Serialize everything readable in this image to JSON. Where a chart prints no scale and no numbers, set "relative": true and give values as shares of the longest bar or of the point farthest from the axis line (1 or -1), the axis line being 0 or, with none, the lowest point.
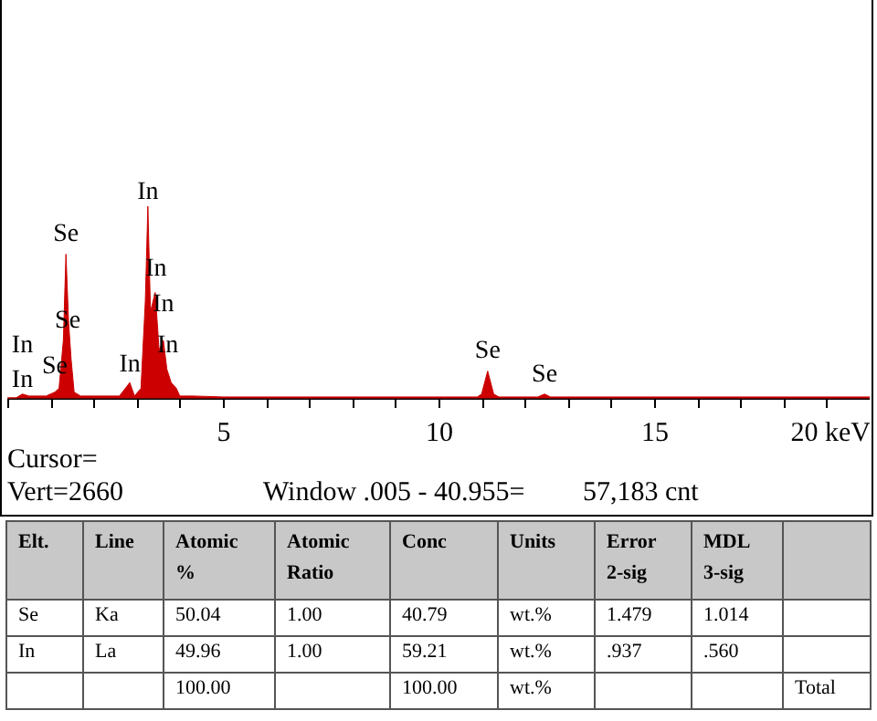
{
  "chart_data": [
    {
      "type": "area",
      "relative": true,
      "color": "#cc0000",
      "grid": false,
      "x": [
        0,
        0.2,
        0.35,
        0.5,
        0.9,
        1.1,
        1.2,
        1.3,
        1.36,
        1.42,
        1.48,
        1.55,
        1.7,
        2.6,
        2.84,
        2.95,
        3.1,
        3.2,
        3.26,
        3.32,
        3.43,
        3.52,
        3.62,
        3.7,
        3.8,
        3.92,
        4.0,
        4.3,
        5,
        10.9,
        11.0,
        11.14,
        11.28,
        11.4,
        12.3,
        12.46,
        12.6,
        20
      ],
      "values": [
        0,
        0,
        0.02,
        0.01,
        0.01,
        0.03,
        0.05,
        0.3,
        0.75,
        0.4,
        0.2,
        0.03,
        0.01,
        0.01,
        0.08,
        0.01,
        0.05,
        0.5,
        1.0,
        0.45,
        0.55,
        0.25,
        0.3,
        0.15,
        0.08,
        0.05,
        0.01,
        0.01,
        0.005,
        0.005,
        0.02,
        0.14,
        0.02,
        0.005,
        0.005,
        0.02,
        0.005,
        0.005
      ],
      "xlim": [
        0,
        20
      ],
      "xticks": [
        {
          "value": 0,
          "label": null
        },
        {
          "value": 1,
          "label": null
        },
        {
          "value": 2,
          "label": null
        },
        {
          "value": 3,
          "label": null
        },
        {
          "value": 4,
          "label": null
        },
        5,
        {
          "value": 6,
          "label": null
        },
        {
          "value": 7,
          "label": null
        },
        {
          "value": 8,
          "label": null
        },
        {
          "value": 9,
          "label": null
        },
        10,
        {
          "value": 11,
          "label": null
        },
        {
          "value": 12,
          "label": null
        },
        {
          "value": 13,
          "label": null
        },
        {
          "value": 14,
          "label": null
        },
        15,
        {
          "value": 16,
          "label": null
        },
        {
          "value": 17,
          "label": null
        },
        {
          "value": 18,
          "label": null
        },
        {
          "value": 19,
          "label": null
        },
        {
          "value": 20,
          "label": "20 keV"
        }
      ],
      "annotations": [
        {
          "text": "In",
          "x": 0.35,
          "y": 0.02
        },
        {
          "text": "In",
          "x": 0.35,
          "y": 0.02
        },
        {
          "text": "Se",
          "x": 1.1,
          "y": 0.09
        },
        {
          "text": "Se",
          "x": 1.4,
          "y": 0.33
        },
        {
          "text": "Se",
          "x": 1.36,
          "y": 0.78
        },
        {
          "text": "In",
          "x": 2.84,
          "y": 0.1
        },
        {
          "text": "In",
          "x": 3.26,
          "y": 1.0
        },
        {
          "text": "In",
          "x": 3.45,
          "y": 0.6
        },
        {
          "text": "In",
          "x": 3.62,
          "y": 0.3
        },
        {
          "text": "In",
          "x": 3.72,
          "y": 0.2
        },
        {
          "text": "Se",
          "x": 11.14,
          "y": 0.17
        },
        {
          "text": "Se",
          "x": 12.46,
          "y": 0.05
        },
        "Cursor=",
        "Vert=2660",
        "Window .005 - 40.955=",
        "57,183 cnt"
      ]
    },
    {
      "type": "other",
      "categories": [
        "Elt.",
        "Line",
        "Atomic\n%",
        "Atomic\nRatio",
        "Conc",
        "Units",
        "Error\n2-sig",
        "MDL\n3-sig",
        null
      ],
      "annotations": [
        "Se",
        "Ka",
        "50.04",
        "1.00",
        "40.79",
        "wt.%",
        "1.479",
        "1.014",
        null,
        "In",
        "La",
        "49.96",
        "1.00",
        "59.21",
        "wt.%",
        ".937",
        ".560",
        null,
        null,
        null,
        "100.00",
        null,
        "100.00",
        "wt.%",
        null,
        null,
        "Total"
      ]
    }
  ]
}
